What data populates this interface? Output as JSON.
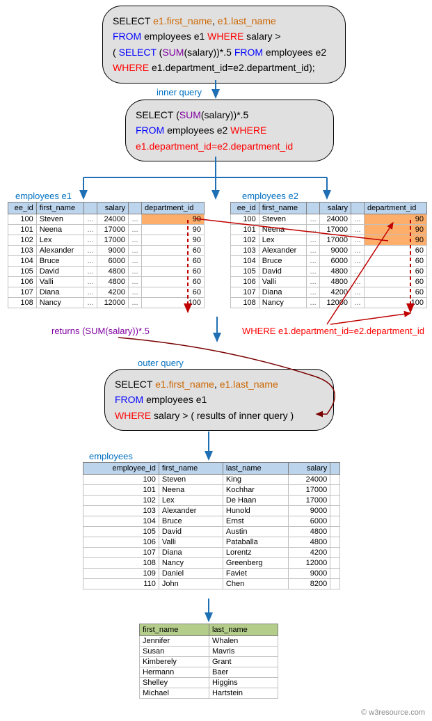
{
  "sqlBox1": {
    "parts": [
      {
        "cls": "kw-black",
        "t": "SELECT "
      },
      {
        "cls": "kw-orange",
        "t": "e1.first_name"
      },
      {
        "cls": "kw-black",
        "t": ", "
      },
      {
        "cls": "kw-orange",
        "t": "e1.last_name"
      },
      {
        "br": true
      },
      {
        "cls": "kw-blue",
        "t": "FROM "
      },
      {
        "cls": "kw-black",
        "t": "employees e1 "
      },
      {
        "cls": "kw-red",
        "t": "WHERE"
      },
      {
        "cls": "kw-black",
        "t": " salary >"
      },
      {
        "br": true
      },
      {
        "cls": "kw-black",
        "t": "( "
      },
      {
        "cls": "kw-blue",
        "t": "SELECT"
      },
      {
        "cls": "kw-black",
        "t": " ("
      },
      {
        "cls": "kw-purple",
        "t": "SUM"
      },
      {
        "cls": "kw-black",
        "t": "(salary))*.5 "
      },
      {
        "cls": "kw-blue",
        "t": "FROM"
      },
      {
        "cls": "kw-black",
        "t": " employees e2"
      },
      {
        "br": true
      },
      {
        "cls": "kw-red",
        "t": "WHERE"
      },
      {
        "cls": "kw-black",
        "t": " e1.department_id=e2.department_id);"
      }
    ]
  },
  "innerLabel": "inner query",
  "sqlBox2": {
    "parts": [
      {
        "cls": "kw-black",
        "t": "SELECT ("
      },
      {
        "cls": "kw-purple",
        "t": "SUM"
      },
      {
        "cls": "kw-black",
        "t": "(salary))*.5"
      },
      {
        "br": true
      },
      {
        "cls": "kw-blue",
        "t": "FROM "
      },
      {
        "cls": "kw-black",
        "t": "employees e2 "
      },
      {
        "cls": "kw-red",
        "t": "WHERE"
      },
      {
        "br": true
      },
      {
        "cls": "kw-red",
        "t": "e1.department_id=e2.department_id"
      }
    ]
  },
  "e1Label": "employees e1",
  "e2Label": "employees e2",
  "empCols": [
    "ee_id",
    "first_name",
    "",
    "salary",
    "",
    "department_id"
  ],
  "empRows": [
    [
      "100",
      "Steven",
      "...",
      "24000",
      "...",
      "90"
    ],
    [
      "101",
      "Neena",
      "...",
      "17000",
      "...",
      "90"
    ],
    [
      "102",
      "Lex",
      "...",
      "17000",
      "...",
      "90"
    ],
    [
      "103",
      "Alexander",
      "...",
      "9000",
      "...",
      "60"
    ],
    [
      "104",
      "Bruce",
      "...",
      "6000",
      "...",
      "60"
    ],
    [
      "105",
      "David",
      "...",
      "4800",
      "...",
      "60"
    ],
    [
      "106",
      "Valli",
      "...",
      "4800",
      "...",
      "60"
    ],
    [
      "107",
      "Diana",
      "...",
      "4200",
      "...",
      "60"
    ],
    [
      "108",
      "Nancy",
      "...",
      "12000",
      "...",
      "100"
    ]
  ],
  "e1Highlight": [
    0
  ],
  "e2Highlight": [
    0,
    1,
    2
  ],
  "returnsLabel": {
    "pre": "returns ",
    "expr": "(SUM(salary))*.5"
  },
  "whereLabel": "WHERE e1.department_id=e2.department_id",
  "outerLabel": "outer query",
  "sqlBox3": {
    "parts": [
      {
        "cls": "kw-black",
        "t": "SELECT "
      },
      {
        "cls": "kw-orange",
        "t": "e1.first_name"
      },
      {
        "cls": "kw-black",
        "t": ", "
      },
      {
        "cls": "kw-orange",
        "t": "e1.last_name"
      },
      {
        "br": true
      },
      {
        "cls": "kw-blue",
        "t": "FROM "
      },
      {
        "cls": "kw-black",
        "t": "employees e1"
      },
      {
        "br": true
      },
      {
        "cls": "kw-red",
        "t": "WHERE"
      },
      {
        "cls": "kw-black",
        "t": " salary > "
      },
      {
        "cls": "kw-black",
        "t": "( results of inner query )"
      }
    ]
  },
  "employeesLabel": "employees",
  "emp2Cols": [
    "employee_id",
    "first_name",
    "last_name",
    "salary",
    ""
  ],
  "emp2Rows": [
    [
      "100",
      "Steven",
      "King",
      "24000",
      ""
    ],
    [
      "101",
      "Neena",
      "Kochhar",
      "17000",
      ""
    ],
    [
      "102",
      "Lex",
      "De Haan",
      "17000",
      ""
    ],
    [
      "103",
      "Alexander",
      "Hunold",
      "9000",
      ""
    ],
    [
      "104",
      "Bruce",
      "Ernst",
      "6000",
      ""
    ],
    [
      "105",
      "David",
      "Austin",
      "4800",
      ""
    ],
    [
      "106",
      "Valli",
      "Pataballa",
      "4800",
      ""
    ],
    [
      "107",
      "Diana",
      "Lorentz",
      "4200",
      ""
    ],
    [
      "108",
      "Nancy",
      "Greenberg",
      "12000",
      ""
    ],
    [
      "109",
      "Daniel",
      "Faviet",
      "9000",
      ""
    ],
    [
      "110",
      "John",
      "Chen",
      "8200",
      ""
    ]
  ],
  "resultCols": [
    "first_name",
    "last_name"
  ],
  "resultRows": [
    [
      "Jennifer",
      "Whalen"
    ],
    [
      "Susan",
      "Mavris"
    ],
    [
      "Kimberely",
      "Grant"
    ],
    [
      "Hermann",
      "Baer"
    ],
    [
      "Shelley",
      "Higgins"
    ],
    [
      "Michael",
      "Hartstein"
    ]
  ],
  "watermark": "© w3resource.com",
  "colors": {
    "arrowBlue": "#1f6fb4",
    "arrowRed": "#c00000",
    "arrowBrown": "#7a0000"
  }
}
